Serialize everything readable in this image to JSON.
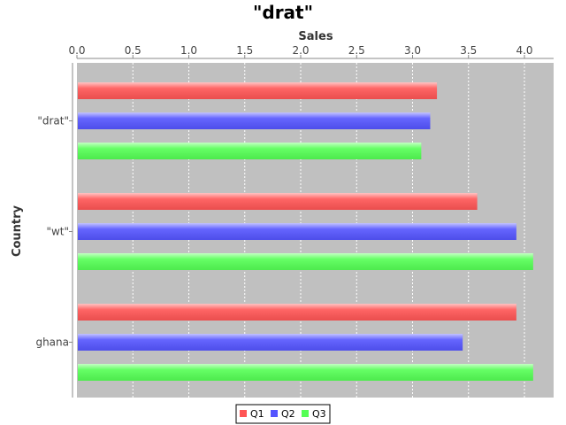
{
  "chart_data": {
    "type": "bar",
    "orientation": "horizontal",
    "title": "\"drat\"",
    "xlabel": "Sales",
    "ylabel": "Country",
    "categories": [
      "\"drat\"",
      "\"wt\"",
      "ghana"
    ],
    "series": [
      {
        "name": "Q1",
        "color": "#ff5555",
        "values": [
          3.21,
          3.57,
          3.92
        ]
      },
      {
        "name": "Q2",
        "color": "#5555ff",
        "values": [
          3.15,
          3.92,
          3.44
        ]
      },
      {
        "name": "Q3",
        "color": "#55ff55",
        "values": [
          3.07,
          4.07,
          4.07
        ]
      }
    ],
    "xlim": [
      0,
      4.3
    ],
    "xticks": [
      "0.0",
      "0.5",
      "1.0",
      "1.5",
      "2.0",
      "2.5",
      "3.0",
      "3.5",
      "4.0"
    ],
    "grid": true,
    "plot_background": "#c0c0c0",
    "legend_position": "bottom"
  }
}
